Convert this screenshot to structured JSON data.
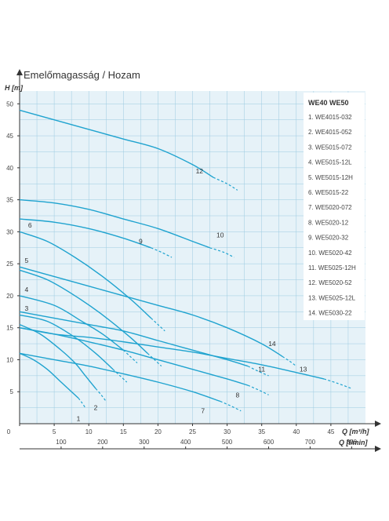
{
  "chart_data": {
    "type": "line",
    "title": "Emelőmagasság / Hozam",
    "ylabel": "H [m]",
    "xlabel": "Q [m³/h]",
    "xlabel2": "Q [l/min]",
    "xlim": [
      0,
      50
    ],
    "ylim": [
      0,
      52
    ],
    "x_ticks": [
      0,
      5,
      10,
      15,
      20,
      25,
      30,
      35,
      40,
      45
    ],
    "y_ticks": [
      5,
      10,
      15,
      20,
      25,
      30,
      35,
      40,
      45,
      50
    ],
    "x2_ticks": [
      100,
      200,
      300,
      400,
      500,
      600,
      700,
      800
    ],
    "grid": true,
    "legend_title": "WE40  WE50",
    "legend": [
      "1. WE4015-032",
      "2. WE4015-052",
      "3. WE5015-072",
      "4. WE5015-12L",
      "5. WE5015-12H",
      "6. WE5015-22",
      "7. WE5020-072",
      "8. WE5020-12",
      "9. WE5020-32",
      "10. WE5020-42",
      "11. WE5025-12H",
      "12. WE5020-52",
      "13. WE5025-12L",
      "14. WE5030-22"
    ],
    "series": [
      {
        "name": "1",
        "x": [
          0,
          2,
          4,
          6,
          7.5,
          8.5
        ],
        "y": [
          11,
          10,
          8.5,
          6.5,
          5,
          4
        ],
        "dash_x": [
          8.5,
          9,
          9.5
        ],
        "dash_y": [
          4,
          3.3,
          2.5
        ],
        "label_x": 8.5,
        "label_y": 0.8
      },
      {
        "name": "2",
        "x": [
          0,
          3,
          6,
          8,
          9.5,
          11
        ],
        "y": [
          15.5,
          14,
          11.5,
          9.5,
          7.5,
          5.5
        ],
        "dash_x": [
          11,
          11.8,
          12.5
        ],
        "dash_y": [
          5.5,
          4.5,
          3.5
        ],
        "label_x": 11,
        "label_y": 2.5
      },
      {
        "name": "3",
        "x": [
          0,
          4,
          8,
          11,
          13.5
        ],
        "y": [
          17,
          16,
          13.5,
          11,
          8.5
        ],
        "dash_x": [
          13.5,
          14.5,
          15.5
        ],
        "dash_y": [
          8.5,
          7.5,
          6.5
        ],
        "label_x": 1,
        "label_y": 18
      },
      {
        "name": "4",
        "x": [
          0,
          5,
          9,
          12,
          15
        ],
        "y": [
          20,
          18.5,
          16,
          14,
          11.5
        ],
        "dash_x": [
          15,
          16,
          17
        ],
        "dash_y": [
          11.5,
          10.5,
          9.5
        ],
        "label_x": 1,
        "label_y": 21
      },
      {
        "name": "5",
        "x": [
          0,
          4,
          8,
          12,
          16,
          18.5
        ],
        "y": [
          24,
          22.5,
          20,
          17,
          13.5,
          11
        ],
        "dash_x": [
          18.5,
          19.5,
          20.5
        ],
        "dash_y": [
          11,
          10,
          9
        ],
        "label_x": 1,
        "label_y": 25.5
      },
      {
        "name": "6",
        "x": [
          0,
          4,
          8,
          12,
          16,
          19
        ],
        "y": [
          30,
          28.5,
          26,
          23,
          19.5,
          16.5
        ],
        "dash_x": [
          19,
          20,
          21
        ],
        "dash_y": [
          16.5,
          15.5,
          14.5
        ],
        "label_x": 1.5,
        "label_y": 31
      },
      {
        "name": "7",
        "x": [
          0,
          5,
          10,
          15,
          20,
          25,
          29
        ],
        "y": [
          11,
          10,
          9,
          7.8,
          6.5,
          5,
          3.5
        ],
        "dash_x": [
          29,
          30.5,
          32
        ],
        "dash_y": [
          3.5,
          2.8,
          2
        ],
        "label_x": 26.5,
        "label_y": 2
      },
      {
        "name": "8",
        "x": [
          0,
          5,
          10,
          15,
          20,
          25,
          30,
          33
        ],
        "y": [
          15,
          14,
          12.8,
          11.5,
          10,
          8.5,
          7,
          6
        ],
        "dash_x": [
          33,
          34.5,
          36
        ],
        "dash_y": [
          6,
          5.3,
          4.5
        ],
        "label_x": 31.5,
        "label_y": 4.5
      },
      {
        "name": "9",
        "x": [
          0,
          5,
          10,
          15,
          19
        ],
        "y": [
          32,
          31.5,
          30.5,
          29,
          27.5
        ],
        "dash_x": [
          19,
          20.5,
          22
        ],
        "dash_y": [
          27.5,
          26.8,
          26
        ],
        "label_x": 17.5,
        "label_y": 28.5
      },
      {
        "name": "10",
        "x": [
          0,
          5,
          10,
          15,
          20,
          25,
          27.5
        ],
        "y": [
          35,
          34.5,
          33.5,
          32,
          30.5,
          28.5,
          27.5
        ],
        "dash_x": [
          27.5,
          29.5,
          31
        ],
        "dash_y": [
          27.5,
          26.8,
          26
        ],
        "label_x": 29,
        "label_y": 29.5
      },
      {
        "name": "11",
        "x": [
          0,
          5,
          10,
          15,
          20,
          25,
          30,
          33
        ],
        "y": [
          17.5,
          16.5,
          15.5,
          14.5,
          13,
          11.5,
          10,
          9
        ],
        "dash_x": [
          33,
          34.5,
          36
        ],
        "dash_y": [
          9,
          8.2,
          7.5
        ],
        "label_x": 35,
        "label_y": 8.5
      },
      {
        "name": "12",
        "x": [
          0,
          5,
          10,
          15,
          20,
          25,
          28
        ],
        "y": [
          49,
          47.5,
          46,
          44.5,
          43,
          40.5,
          38.5
        ],
        "dash_x": [
          28,
          30,
          31.5
        ],
        "dash_y": [
          38.5,
          37.5,
          36.5
        ],
        "label_x": 26,
        "label_y": 39.5
      },
      {
        "name": "13",
        "x": [
          0,
          5,
          10,
          15,
          20,
          25,
          30,
          35,
          40,
          44
        ],
        "y": [
          15,
          14,
          13.5,
          12.8,
          12,
          11.2,
          10.2,
          9.2,
          8,
          7
        ],
        "dash_x": [
          44,
          46,
          48
        ],
        "dash_y": [
          7,
          6.3,
          5.5
        ],
        "label_x": 41,
        "label_y": 8.5
      },
      {
        "name": "14",
        "x": [
          0,
          5,
          10,
          15,
          20,
          25,
          30,
          35,
          38
        ],
        "y": [
          24.5,
          23,
          21.5,
          20,
          18.5,
          17,
          15,
          12.5,
          10.5
        ],
        "dash_x": [
          38,
          39,
          40
        ],
        "dash_y": [
          10.5,
          9.8,
          9
        ],
        "label_x": 36.5,
        "label_y": 12.5
      }
    ]
  },
  "colors": {
    "curve": "#1fa3cf",
    "grid_bg": "#e6f2f8",
    "grid_line": "#9ccbe1",
    "axis": "#333333",
    "legend_bg": "#ffffff"
  }
}
